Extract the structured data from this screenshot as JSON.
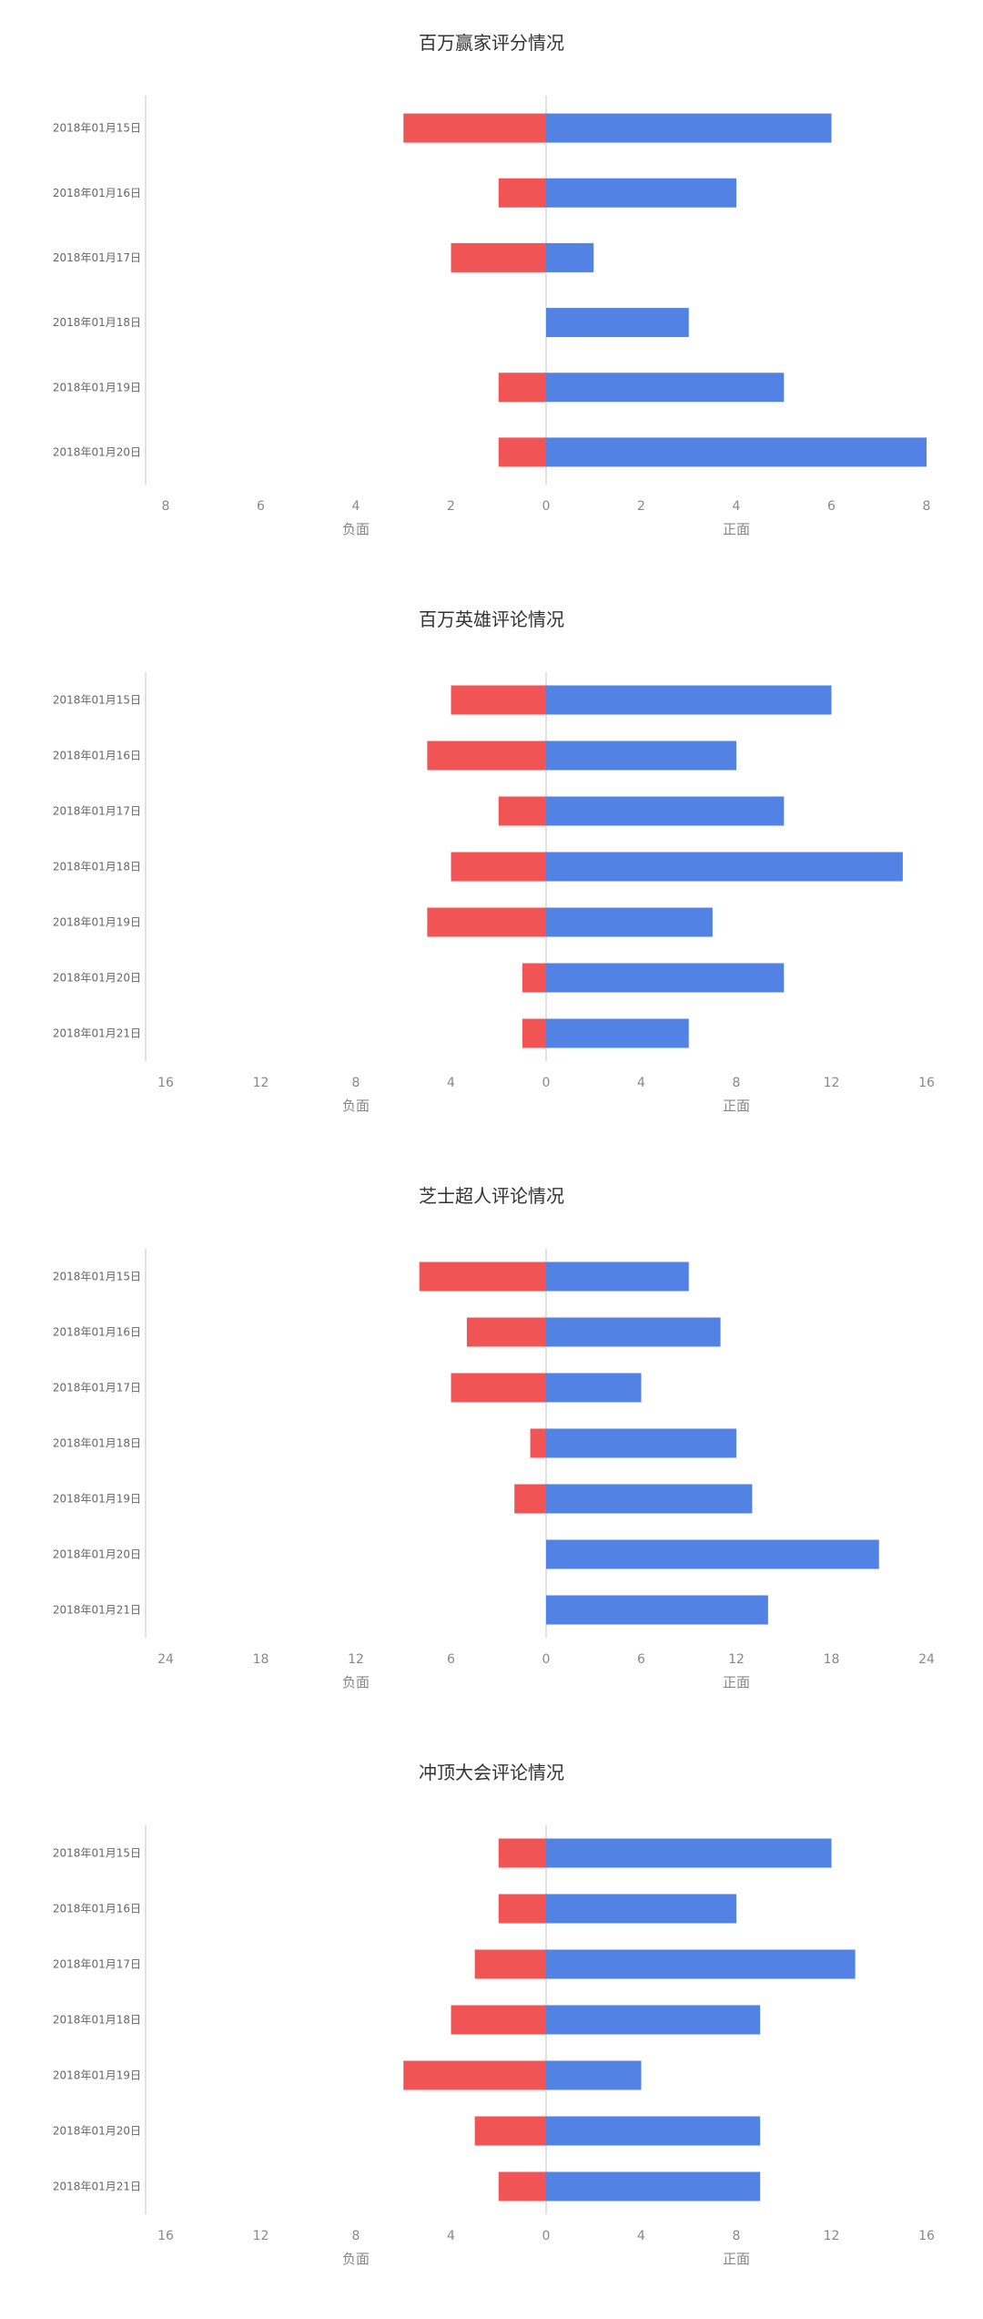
{
  "colors": {
    "negative": "#f05454",
    "positive": "#5282e3"
  },
  "chart_data": [
    {
      "type": "bar",
      "title": "百万赢家评分情况",
      "categories": [
        "2018年01月15日",
        "2018年01月16日",
        "2018年01月17日",
        "2018年01月18日",
        "2018年01月19日",
        "2018年01月20日"
      ],
      "series": [
        {
          "name": "负面",
          "values": [
            3,
            1,
            2,
            0,
            1,
            1
          ]
        },
        {
          "name": "正面",
          "values": [
            6,
            4,
            1,
            3,
            5,
            8
          ]
        }
      ],
      "neg_ticks": [
        8,
        6,
        4,
        2
      ],
      "pos_ticks": [
        0,
        2,
        4,
        6,
        8
      ],
      "max": 8,
      "neg_label": "负面",
      "pos_label": "正面"
    },
    {
      "type": "bar",
      "title": "百万英雄评论情况",
      "categories": [
        "2018年01月15日",
        "2018年01月16日",
        "2018年01月17日",
        "2018年01月18日",
        "2018年01月19日",
        "2018年01月20日",
        "2018年01月21日"
      ],
      "series": [
        {
          "name": "负面",
          "values": [
            4,
            5,
            2,
            4,
            5,
            1,
            1
          ]
        },
        {
          "name": "正面",
          "values": [
            12,
            8,
            10,
            15,
            7,
            10,
            6
          ]
        }
      ],
      "neg_ticks": [
        16,
        12,
        8,
        4
      ],
      "pos_ticks": [
        0,
        4,
        8,
        12,
        16
      ],
      "max": 16,
      "neg_label": "负面",
      "pos_label": "正面"
    },
    {
      "type": "bar",
      "title": "芝士超人评论情况",
      "categories": [
        "2018年01月15日",
        "2018年01月16日",
        "2018年01月17日",
        "2018年01月18日",
        "2018年01月19日",
        "2018年01月20日",
        "2018年01月21日"
      ],
      "series": [
        {
          "name": "负面",
          "values": [
            8,
            5,
            6,
            1,
            2,
            0,
            0
          ]
        },
        {
          "name": "正面",
          "values": [
            9,
            11,
            6,
            12,
            13,
            21,
            14
          ]
        }
      ],
      "neg_ticks": [
        24,
        18,
        12,
        6
      ],
      "pos_ticks": [
        0,
        6,
        12,
        18,
        24
      ],
      "max": 24,
      "neg_label": "负面",
      "pos_label": "正面"
    },
    {
      "type": "bar",
      "title": "冲顶大会评论情况",
      "categories": [
        "2018年01月15日",
        "2018年01月16日",
        "2018年01月17日",
        "2018年01月18日",
        "2018年01月19日",
        "2018年01月20日",
        "2018年01月21日"
      ],
      "series": [
        {
          "name": "负面",
          "values": [
            2,
            2,
            3,
            4,
            6,
            3,
            2
          ]
        },
        {
          "name": "正面",
          "values": [
            12,
            8,
            13,
            9,
            4,
            9,
            9
          ]
        }
      ],
      "neg_ticks": [
        16,
        12,
        8,
        4
      ],
      "pos_ticks": [
        0,
        4,
        8,
        12,
        16
      ],
      "max": 16,
      "neg_label": "负面",
      "pos_label": "正面"
    }
  ]
}
